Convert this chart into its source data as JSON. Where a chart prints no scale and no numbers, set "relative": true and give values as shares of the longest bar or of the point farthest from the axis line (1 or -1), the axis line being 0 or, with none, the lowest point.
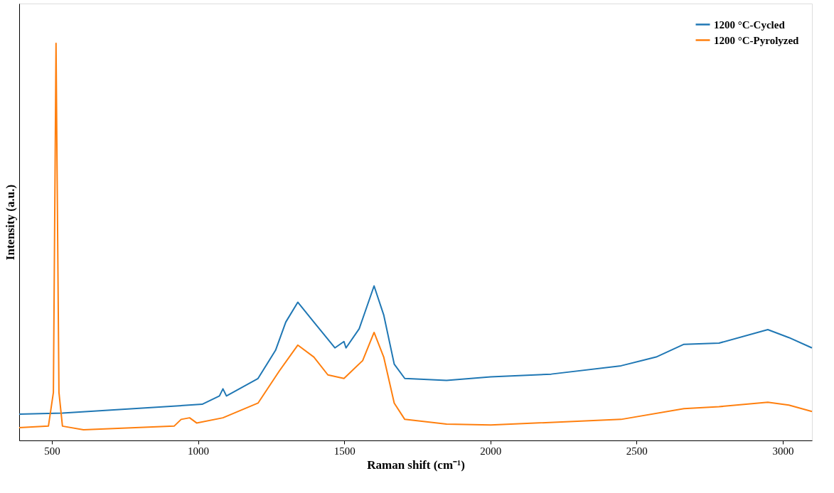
{
  "chart_data": {
    "type": "line",
    "relative": true,
    "xlabel": "Raman shift (cm⁻¹)",
    "ylabel": "Intensity (a.u.)",
    "xlim": [
      388,
      3100
    ],
    "xticks": [
      500,
      1000,
      1500,
      2000,
      2500,
      3000
    ],
    "grid": false,
    "legend": "top right",
    "marker": "none",
    "line_style": "solid",
    "series": [
      {
        "name": "1200 °C-Cycled",
        "color": "#1f77b4",
        "x": [
          388,
          536,
          1014,
          1073,
          1085,
          1097,
          1205,
          1265,
          1300,
          1341,
          1396,
          1468,
          1499,
          1506,
          1551,
          1602,
          1635,
          1671,
          1707,
          1850,
          2001,
          2208,
          2447,
          2567,
          2662,
          2782,
          2949,
          3021,
          3100
        ],
        "values": [
          0.066,
          0.069,
          0.091,
          0.112,
          0.13,
          0.112,
          0.156,
          0.227,
          0.298,
          0.348,
          0.298,
          0.233,
          0.249,
          0.233,
          0.281,
          0.389,
          0.316,
          0.192,
          0.156,
          0.151,
          0.16,
          0.167,
          0.188,
          0.21,
          0.242,
          0.245,
          0.279,
          0.259,
          0.233
        ]
      },
      {
        "name": "1200 °C-Pyrolyzed",
        "color": "#ff7f0e",
        "x": [
          388,
          488,
          505,
          514,
          524,
          536,
          608,
          918,
          942,
          971,
          995,
          1085,
          1205,
          1277,
          1341,
          1396,
          1444,
          1499,
          1563,
          1602,
          1635,
          1671,
          1707,
          1850,
          2001,
          2447,
          2662,
          2782,
          2949,
          3021,
          3100
        ],
        "values": [
          0.032,
          0.036,
          0.121,
          1.0,
          0.121,
          0.036,
          0.027,
          0.036,
          0.053,
          0.057,
          0.044,
          0.057,
          0.094,
          0.174,
          0.24,
          0.21,
          0.165,
          0.156,
          0.201,
          0.272,
          0.21,
          0.094,
          0.053,
          0.041,
          0.039,
          0.053,
          0.08,
          0.085,
          0.096,
          0.089,
          0.073
        ]
      }
    ]
  }
}
